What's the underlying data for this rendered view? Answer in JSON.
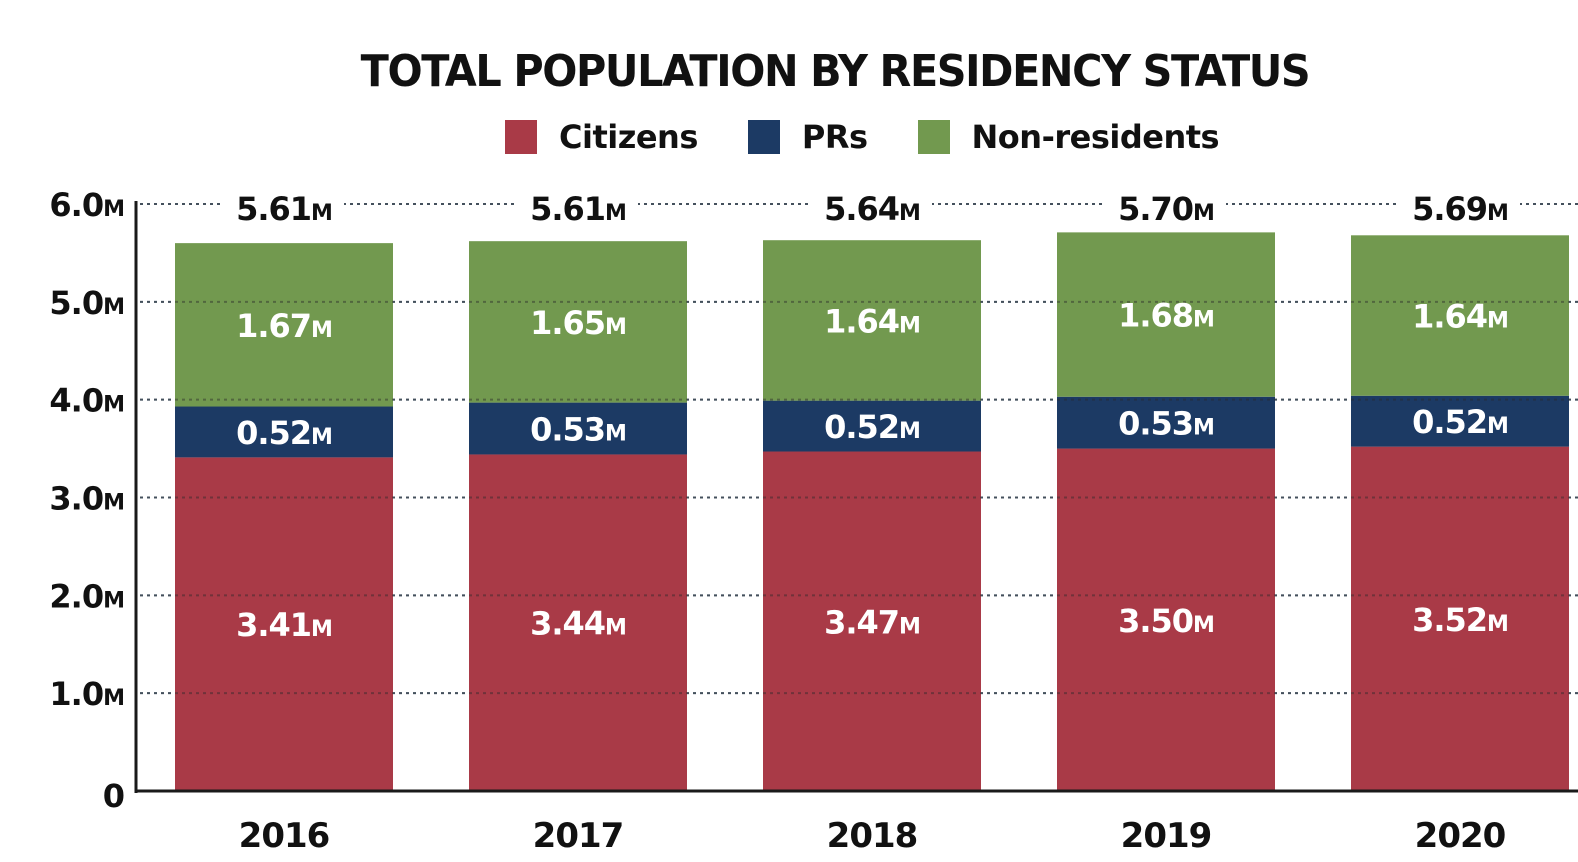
{
  "chart_data": {
    "type": "bar",
    "stacked": true,
    "title": "TOTAL POPULATION BY RESIDENCY STATUS",
    "xlabel": "",
    "ylabel": "",
    "unit_suffix": "M",
    "categories": [
      "2016",
      "2017",
      "2018",
      "2019",
      "2020"
    ],
    "series": [
      {
        "name": "Citizens",
        "color": "#a93a47",
        "values": [
          3.41,
          3.44,
          3.47,
          3.5,
          3.52
        ]
      },
      {
        "name": "PRs",
        "color": "#1c3a64",
        "values": [
          0.52,
          0.53,
          0.52,
          0.53,
          0.52
        ]
      },
      {
        "name": "Non-residents",
        "color": "#72994f",
        "values": [
          1.67,
          1.65,
          1.64,
          1.68,
          1.64
        ]
      }
    ],
    "totals": [
      5.61,
      5.61,
      5.64,
      5.7,
      5.69
    ],
    "ylim": [
      0,
      6
    ],
    "yticks": [
      {
        "value": 0,
        "label": "0",
        "unit": ""
      },
      {
        "value": 1,
        "label": "1.0",
        "unit": "M"
      },
      {
        "value": 2,
        "label": "2.0",
        "unit": "M"
      },
      {
        "value": 3,
        "label": "3.0",
        "unit": "M"
      },
      {
        "value": 4,
        "label": "4.0",
        "unit": "M"
      },
      {
        "value": 5,
        "label": "5.0",
        "unit": "M"
      },
      {
        "value": 6,
        "label": "6.0",
        "unit": "M"
      }
    ],
    "grid": true,
    "grid_style": "dotted",
    "legend_position": "top-center"
  }
}
